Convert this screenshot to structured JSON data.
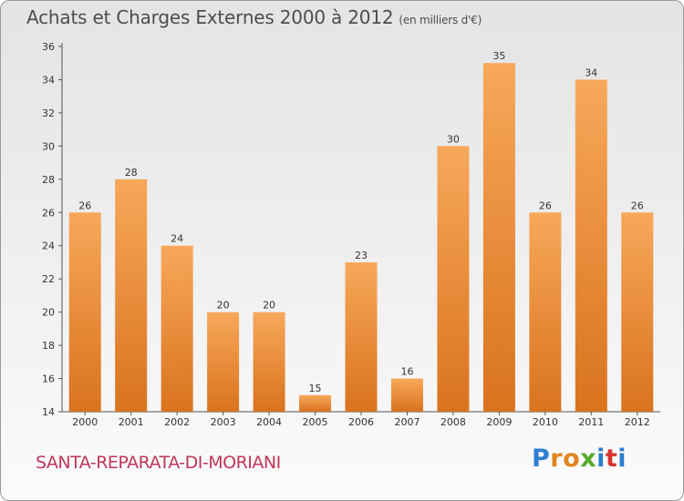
{
  "header": {
    "title": "Achats et Charges Externes 2000 à 2012",
    "unit": "(en milliers d'€)"
  },
  "footer": {
    "commune": "SANTA-REPARATA-DI-MORIANI",
    "logo_letters": [
      "P",
      "r",
      "o",
      "x",
      "i",
      "t",
      "i"
    ],
    "logo_colors": [
      "#2f7fd0",
      "#e0851f",
      "#e0851f",
      "#55aa2a",
      "#2f7fd0",
      "#d9352f",
      "#2f7fd0"
    ]
  },
  "colors": {
    "bar_light": "#f7a85a",
    "bar_dark": "#d9731e",
    "axis": "#555555",
    "text": "#333333"
  },
  "chart_data": {
    "type": "bar",
    "categories": [
      "2000",
      "2001",
      "2002",
      "2003",
      "2004",
      "2005",
      "2006",
      "2007",
      "2008",
      "2009",
      "2010",
      "2011",
      "2012"
    ],
    "values": [
      26,
      28,
      24,
      20,
      20,
      15,
      23,
      16,
      30,
      35,
      26,
      34,
      26
    ],
    "ylim": [
      14,
      36
    ],
    "yticks": [
      14,
      16,
      18,
      20,
      22,
      24,
      26,
      28,
      30,
      32,
      34,
      36
    ],
    "grid": false,
    "data_labels": true
  }
}
